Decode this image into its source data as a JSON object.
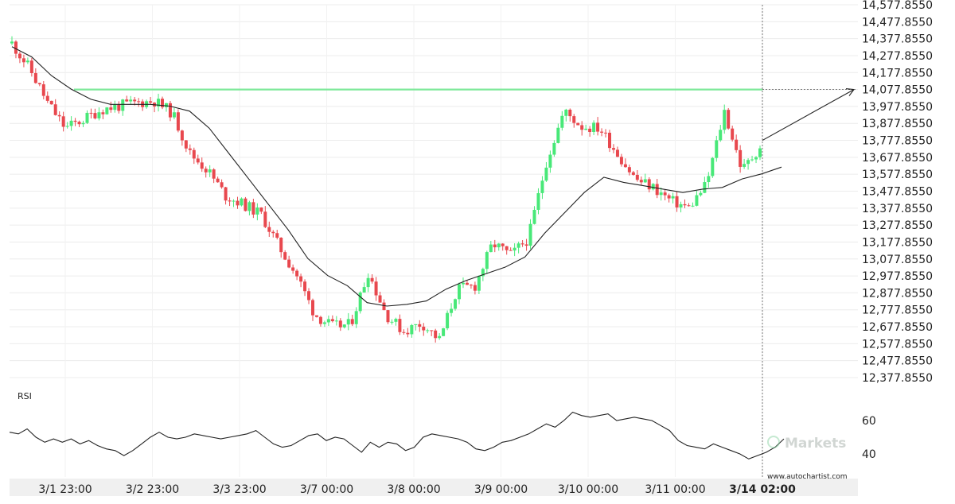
{
  "chart_data": [
    {
      "type": "candlestick",
      "title": "",
      "x_tick_labels": [
        "3/1 23:00",
        "3/2 23:00",
        "3/3 23:00",
        "3/7 00:00",
        "3/8 00:00",
        "3/9 00:00",
        "3/10 00:00",
        "3/11 00:00",
        "3/14 02:00"
      ],
      "y_tick_labels": [
        "14,577.8550",
        "14,477.8550",
        "14,377.8550",
        "14,277.8550",
        "14,177.8550",
        "14,077.8550",
        "13,977.8550",
        "13,877.8550",
        "13,777.8550",
        "13,677.8550",
        "13,577.8550",
        "13,477.8550",
        "13,377.8550",
        "13,277.8550",
        "13,177.8550",
        "13,077.8550",
        "12,977.8550",
        "12,877.8550",
        "12,777.8550",
        "12,677.8550",
        "12,577.8550",
        "12,477.8550",
        "12,377.8550"
      ],
      "ylim": [
        12377.855,
        14577.855
      ],
      "resistance_level": 14077.855,
      "grid": true,
      "colors": {
        "up": "#48e878",
        "down": "#e8484e",
        "level": "#7ee89a",
        "ma": "#222222"
      },
      "close_path": [
        14350,
        14200,
        14000,
        13850,
        13900,
        13960,
        13980,
        14000,
        14010,
        13940,
        13700,
        13600,
        13450,
        13400,
        13340,
        13150,
        12980,
        12750,
        12680,
        12690,
        13000,
        12750,
        12650,
        12700,
        12600,
        12900,
        12920,
        13170,
        13100,
        13200,
        13650,
        13950,
        13860,
        13850,
        13700,
        13550,
        13500,
        13420,
        13380,
        13520,
        13950,
        13600,
        13740
      ],
      "ma_path": [
        14330,
        14270,
        14160,
        14080,
        14020,
        13990,
        13990,
        13990,
        13980,
        13950,
        13850,
        13700,
        13550,
        13400,
        13250,
        13080,
        12980,
        12920,
        12820,
        12800,
        12810,
        12830,
        12900,
        12950,
        12990,
        13030,
        13090,
        13230,
        13350,
        13470,
        13560,
        13530,
        13510,
        13490,
        13470,
        13490,
        13500,
        13550,
        13580,
        13620
      ],
      "projection": {
        "from_label": "3/14 02:00",
        "to_level": 14077.855
      }
    },
    {
      "type": "line",
      "title": "RSI",
      "y_tick_labels": [
        "60",
        "40"
      ],
      "ylim": [
        30,
        70
      ],
      "values": [
        53,
        52,
        55,
        50,
        47,
        49,
        47,
        49,
        46,
        48,
        45,
        43,
        42,
        39,
        42,
        46,
        50,
        53,
        50,
        49,
        50,
        52,
        51,
        50,
        49,
        50,
        51,
        52,
        54,
        50,
        46,
        44,
        45,
        48,
        51,
        52,
        48,
        50,
        49,
        45,
        41,
        47,
        44,
        47,
        46,
        42,
        44,
        50,
        52,
        51,
        50,
        49,
        47,
        43,
        42,
        44,
        47,
        48,
        50,
        52,
        55,
        58,
        56,
        60,
        65,
        63,
        62,
        63,
        64,
        60,
        61,
        62,
        61,
        60,
        57,
        54,
        48,
        45,
        44,
        43,
        46,
        44,
        42,
        40,
        37,
        39,
        41,
        44,
        49
      ]
    }
  ],
  "watermark": {
    "brand": "Markets",
    "site": "www.autochartist.com"
  }
}
